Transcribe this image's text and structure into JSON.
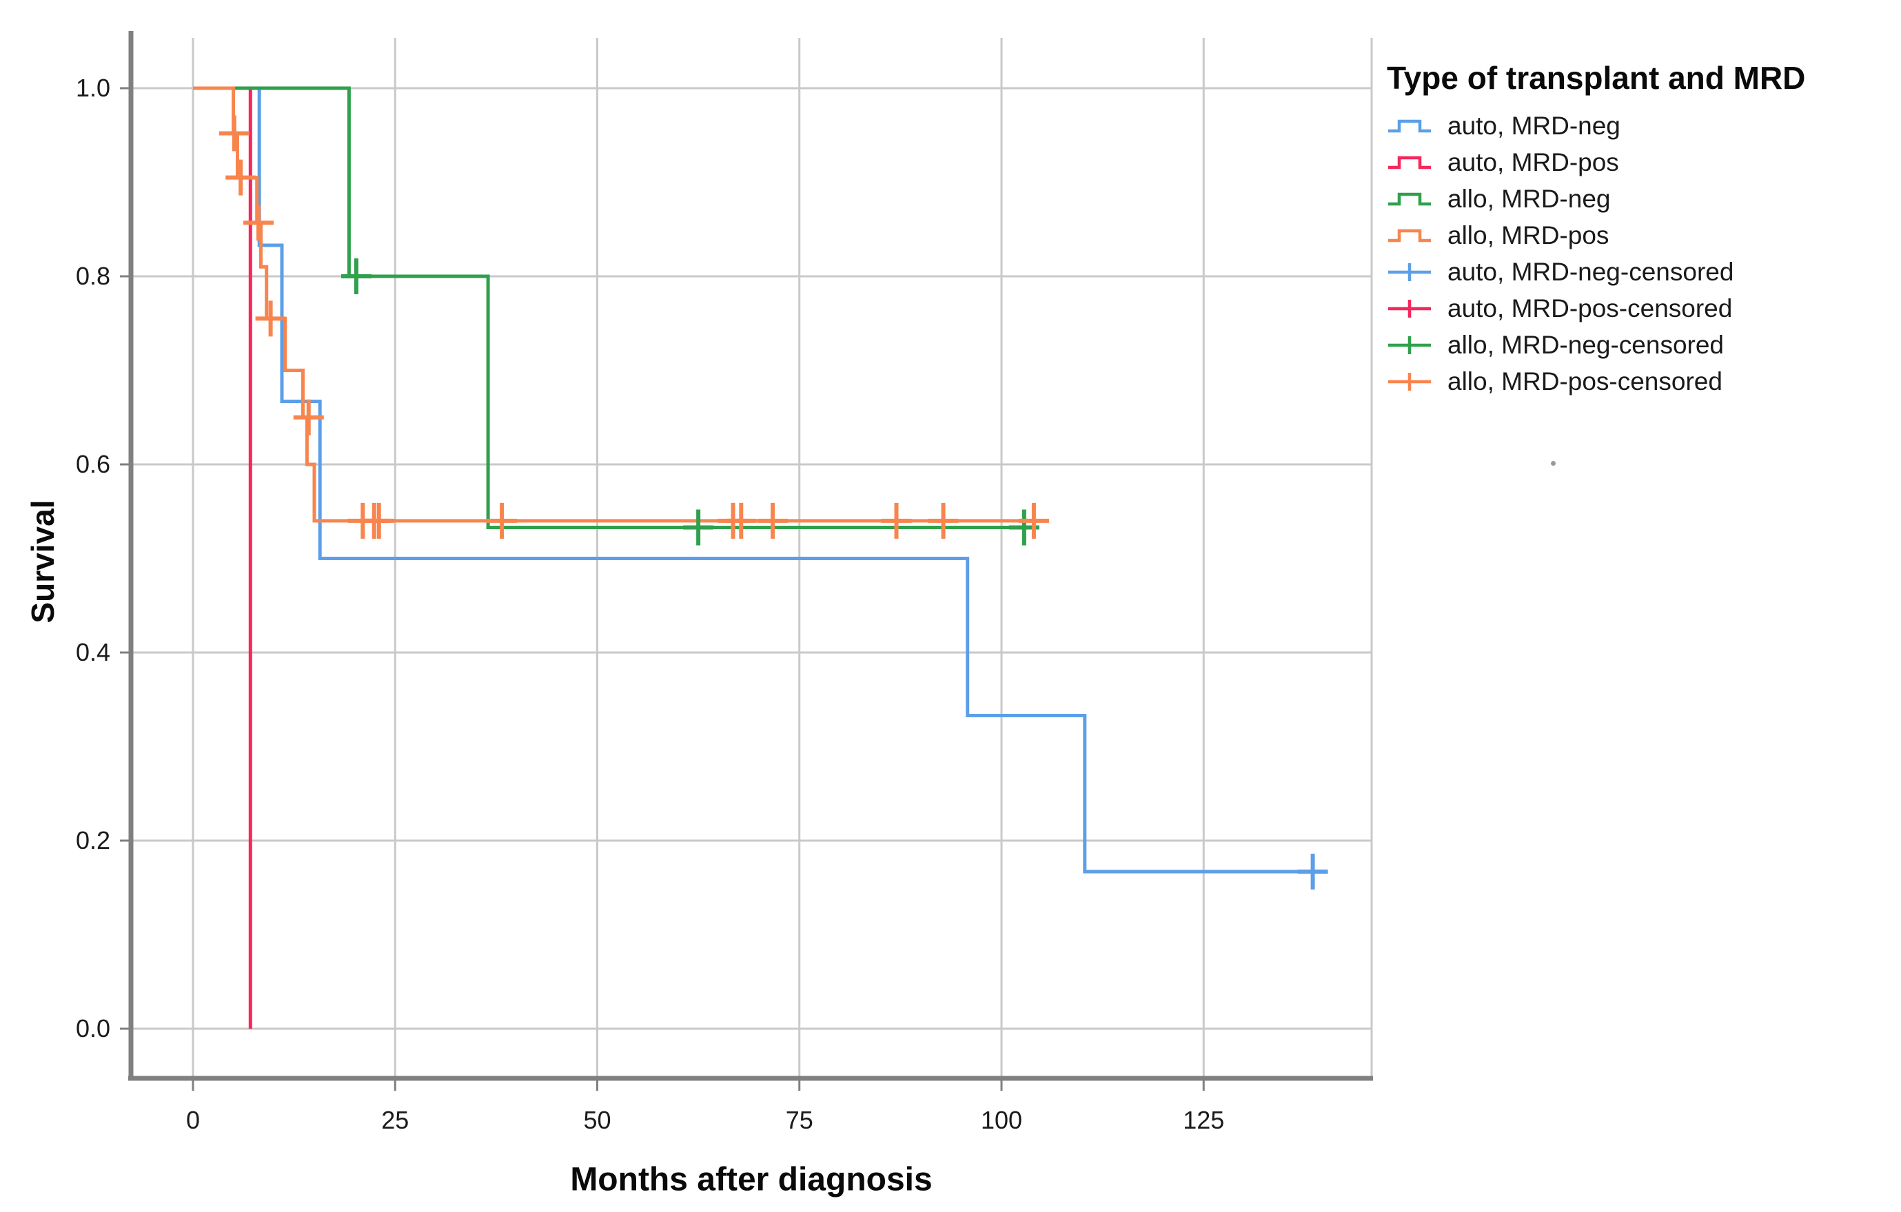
{
  "chart_data": {
    "type": "line",
    "subtype": "kaplan-meier-step",
    "title": "",
    "xlabel": "Months after diagnosis",
    "ylabel": "Survival",
    "grid": true,
    "legend_position": "right-top",
    "xlim": [
      -7.7,
      145.8
    ],
    "ylim": [
      -0.053,
      1.053
    ],
    "x_ticks": [
      0,
      25,
      50,
      75,
      100,
      125
    ],
    "x_tick_labels": [
      "0",
      "25",
      "50",
      "75",
      "100",
      "125"
    ],
    "y_ticks": [
      1.0,
      0.8,
      0.6,
      0.4,
      0.2,
      0.0
    ],
    "y_tick_labels": [
      "1.0",
      "0.8",
      "0.6",
      "0.4",
      "0.2",
      "0.0"
    ],
    "colors": {
      "auto_mrd_neg": "#5C9FE8",
      "auto_mrd_pos": "#F5275B",
      "allo_mrd_neg": "#2FA04C",
      "allo_mrd_pos": "#F8854E",
      "grid": "#C9C9C9",
      "axis": "#808080",
      "tick_text": "#1B1B1B"
    },
    "series": [
      {
        "label": "auto, MRD-neg",
        "color": "#5C9FE8",
        "steps": [
          [
            0,
            1
          ],
          [
            8.2,
            1
          ],
          [
            8.2,
            0.833
          ],
          [
            11,
            0.833
          ],
          [
            11,
            0.667
          ],
          [
            15.7,
            0.667
          ],
          [
            15.7,
            0.5
          ],
          [
            95.8,
            0.5
          ],
          [
            95.8,
            0.333
          ],
          [
            110.3,
            0.333
          ],
          [
            110.3,
            0.167
          ],
          [
            139.5,
            0.167
          ]
        ],
        "censors": [
          [
            138.5,
            0.167
          ]
        ]
      },
      {
        "label": "auto, MRD-pos",
        "color": "#F5275B",
        "steps": [
          [
            0,
            1
          ],
          [
            7.1,
            1
          ],
          [
            7.1,
            0
          ]
        ],
        "censors": []
      },
      {
        "label": "allo, MRD-neg",
        "color": "#2FA04C",
        "steps": [
          [
            0,
            1
          ],
          [
            19.3,
            1
          ],
          [
            19.3,
            0.8
          ],
          [
            36.5,
            0.8
          ],
          [
            36.5,
            0.533
          ],
          [
            104,
            0.533
          ]
        ],
        "censors": [
          [
            20.2,
            0.8
          ],
          [
            62.5,
            0.533
          ],
          [
            102.8,
            0.533
          ]
        ]
      },
      {
        "label": "allo, MRD-pos",
        "color": "#F8854E",
        "steps": [
          [
            0,
            1
          ],
          [
            5,
            1
          ],
          [
            5,
            0.952
          ],
          [
            5.5,
            0.952
          ],
          [
            5.5,
            0.905
          ],
          [
            7.9,
            0.905
          ],
          [
            7.9,
            0.857
          ],
          [
            8.4,
            0.857
          ],
          [
            8.4,
            0.81
          ],
          [
            9.1,
            0.81
          ],
          [
            9.1,
            0.755
          ],
          [
            11.4,
            0.755
          ],
          [
            11.4,
            0.7
          ],
          [
            13.6,
            0.7
          ],
          [
            13.6,
            0.65
          ],
          [
            14.1,
            0.65
          ],
          [
            14.1,
            0.6
          ],
          [
            15,
            0.6
          ],
          [
            15,
            0.54
          ],
          [
            104.5,
            0.54
          ]
        ],
        "censors": [
          [
            5.1,
            0.952
          ],
          [
            5.9,
            0.905
          ],
          [
            8.1,
            0.857
          ],
          [
            9.6,
            0.755
          ],
          [
            14.3,
            0.65
          ],
          [
            21,
            0.54
          ],
          [
            22.4,
            0.54
          ],
          [
            23,
            0.54
          ],
          [
            38.2,
            0.54
          ],
          [
            66.8,
            0.54
          ],
          [
            67.8,
            0.54
          ],
          [
            71.7,
            0.54
          ],
          [
            87,
            0.54
          ],
          [
            92.8,
            0.54
          ],
          [
            104,
            0.54
          ]
        ]
      }
    ],
    "legend": {
      "title": "Type of transplant and MRD",
      "items": [
        {
          "label": "auto, MRD-neg",
          "marker": "step-line"
        },
        {
          "label": "auto, MRD-pos",
          "marker": "step-line"
        },
        {
          "label": "allo, MRD-neg",
          "marker": "step-line"
        },
        {
          "label": "allo, MRD-pos",
          "marker": "step-line"
        },
        {
          "label": "auto, MRD-neg-censored",
          "marker": "plus-on-line"
        },
        {
          "label": "auto, MRD-pos-censored",
          "marker": "plus-on-line"
        },
        {
          "label": "allo, MRD-neg-censored",
          "marker": "plus-on-line"
        },
        {
          "label": "allo, MRD-pos-censored",
          "marker": "plus-on-line"
        }
      ]
    }
  }
}
